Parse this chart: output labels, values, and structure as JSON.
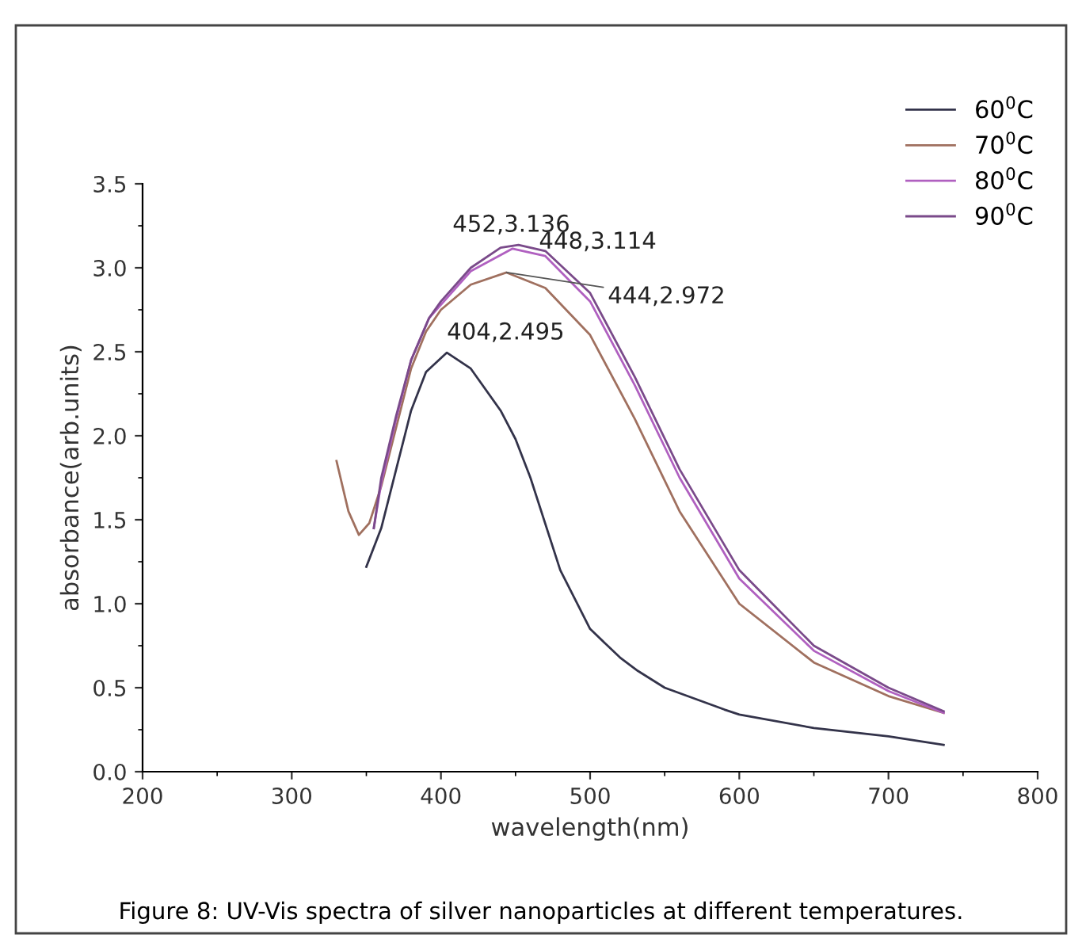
{
  "chart_data": {
    "type": "line",
    "xlabel": "wavelength(nm)",
    "ylabel": "absorbance(arb.units)",
    "xlim": [
      200,
      800
    ],
    "xticks": [
      200,
      300,
      400,
      500,
      600,
      700,
      800
    ],
    "ylim": [
      0,
      3.5
    ],
    "yticks": [
      {
        "value": 0,
        "label": "0.0"
      },
      0.5,
      {
        "value": 1,
        "label": "1.0"
      },
      1.5,
      {
        "value": 2,
        "label": "2.0"
      },
      2.5,
      {
        "value": 3,
        "label": "3.0"
      },
      3.5
    ],
    "grid": false,
    "legend": "top right",
    "marker": "none",
    "line_style": "solid",
    "series": [
      {
        "name": "60$^{0}$C",
        "color": "#33334a",
        "x": [
          350,
          360,
          370,
          380,
          390,
          404,
          420,
          440,
          450,
          460,
          480,
          500,
          520,
          532,
          550,
          590,
          600,
          650,
          700,
          737
        ],
        "values": [
          1.22,
          1.45,
          1.8,
          2.15,
          2.38,
          2.495,
          2.4,
          2.15,
          1.98,
          1.75,
          1.2,
          0.85,
          0.68,
          0.6,
          0.5,
          0.37,
          0.34,
          0.26,
          0.21,
          0.16
        ]
      },
      {
        "name": "70$^{0}$C",
        "color": "#a0705f",
        "x": [
          330,
          338,
          345,
          352,
          360,
          370,
          380,
          390,
          400,
          420,
          444,
          470,
          500,
          530,
          560,
          600,
          650,
          700,
          737
        ],
        "values": [
          1.85,
          1.55,
          1.41,
          1.48,
          1.7,
          2.05,
          2.4,
          2.62,
          2.75,
          2.9,
          2.972,
          2.88,
          2.6,
          2.1,
          1.55,
          1.0,
          0.65,
          0.45,
          0.35
        ]
      },
      {
        "name": "80$^{0}$C",
        "color": "#b060c0",
        "x": [
          355,
          360,
          370,
          380,
          392,
          400,
          420,
          448,
          470,
          500,
          530,
          560,
          600,
          650,
          700,
          737
        ],
        "values": [
          1.45,
          1.72,
          2.1,
          2.45,
          2.7,
          2.78,
          2.98,
          3.114,
          3.07,
          2.8,
          2.3,
          1.75,
          1.15,
          0.72,
          0.48,
          0.35
        ]
      },
      {
        "name": "90$^{0}$C",
        "color": "#7a4a8a",
        "x": [
          355,
          360,
          370,
          380,
          392,
          400,
          420,
          440,
          452,
          470,
          500,
          530,
          560,
          600,
          650,
          700,
          737
        ],
        "values": [
          1.45,
          1.75,
          2.12,
          2.45,
          2.7,
          2.8,
          3.0,
          3.12,
          3.136,
          3.1,
          2.85,
          2.35,
          1.8,
          1.2,
          0.75,
          0.5,
          0.36
        ]
      }
    ],
    "annotations": [
      {
        "text": "452,3.136",
        "x": 452,
        "y": 3.136
      },
      {
        "text": "448,3.114",
        "x": 448,
        "y": 3.114
      },
      {
        "text": "444,2.972",
        "x": 444,
        "y": 2.972
      },
      {
        "text": "404,2.495",
        "x": 404,
        "y": 2.495
      },
      "Figure 8: UV-Vis spectra of silver nanoparticles at different temperatures."
    ]
  }
}
